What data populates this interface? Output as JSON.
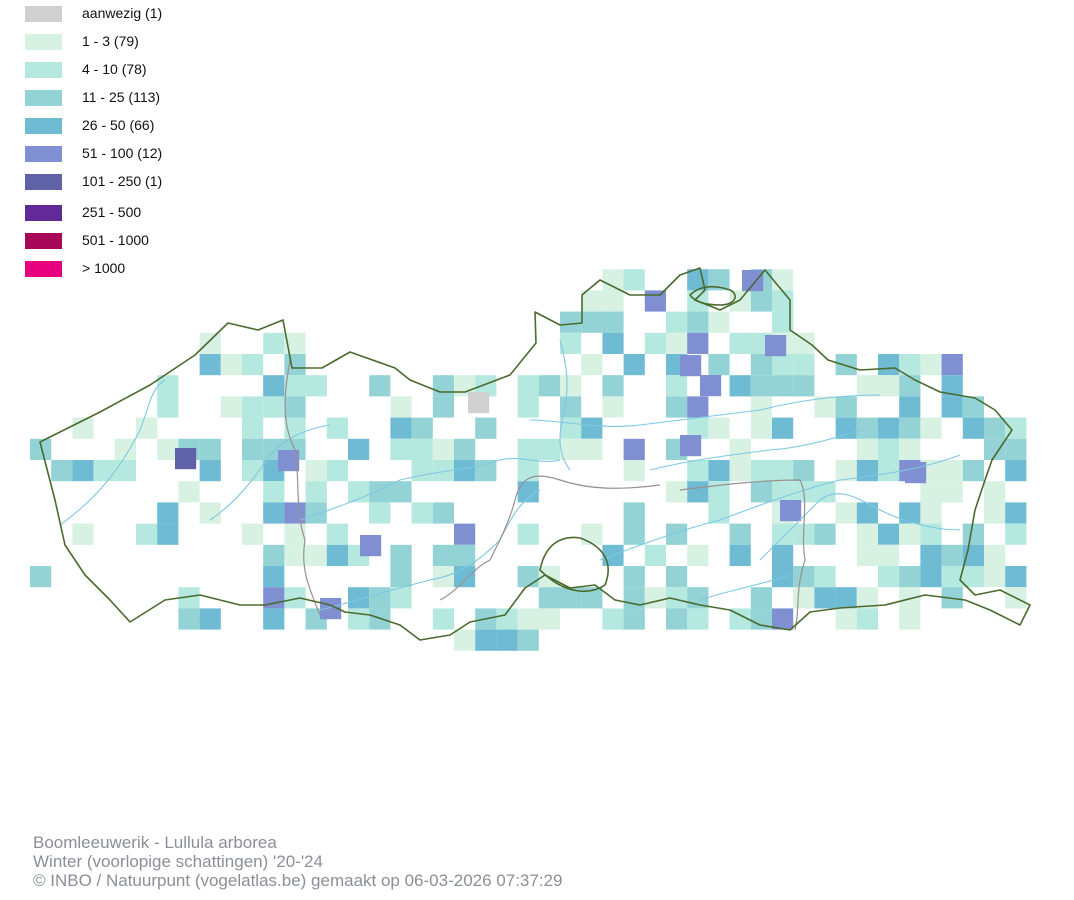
{
  "legend": [
    {
      "label": "aanwezig (1)",
      "color": "#d0d0d0"
    },
    {
      "label": "1 - 3 (79)",
      "color": "#d7f1e3"
    },
    {
      "label": "4 - 10 (78)",
      "color": "#b5e8df"
    },
    {
      "label": "11 - 25 (113)",
      "color": "#93d2d5"
    },
    {
      "label": "26 - 50 (66)",
      "color": "#6fbbd3"
    },
    {
      "label": "51 - 100 (12)",
      "color": "#808fd2"
    },
    {
      "label": "101 - 250 (1)",
      "color": "#5f62a6"
    },
    {
      "label": "251 - 500",
      "color": "#622a98"
    },
    {
      "label": "501 - 1000",
      "color": "#a8085a"
    },
    {
      "label": "> 1000",
      "color": "#e6007e"
    }
  ],
  "credits": {
    "line1": "Boomleeuwerik - Lullula arborea",
    "line2": "Winter (voorlopige schattingen) '20-'24",
    "line3": "© INBO / Natuurpunt (vogelatlas.be) gemaakt op 06-03-2026 07:37:29"
  },
  "colors": {
    "border": "#4a6b2f",
    "province_border": "#9a9090",
    "river": "#7ec8e3"
  }
}
